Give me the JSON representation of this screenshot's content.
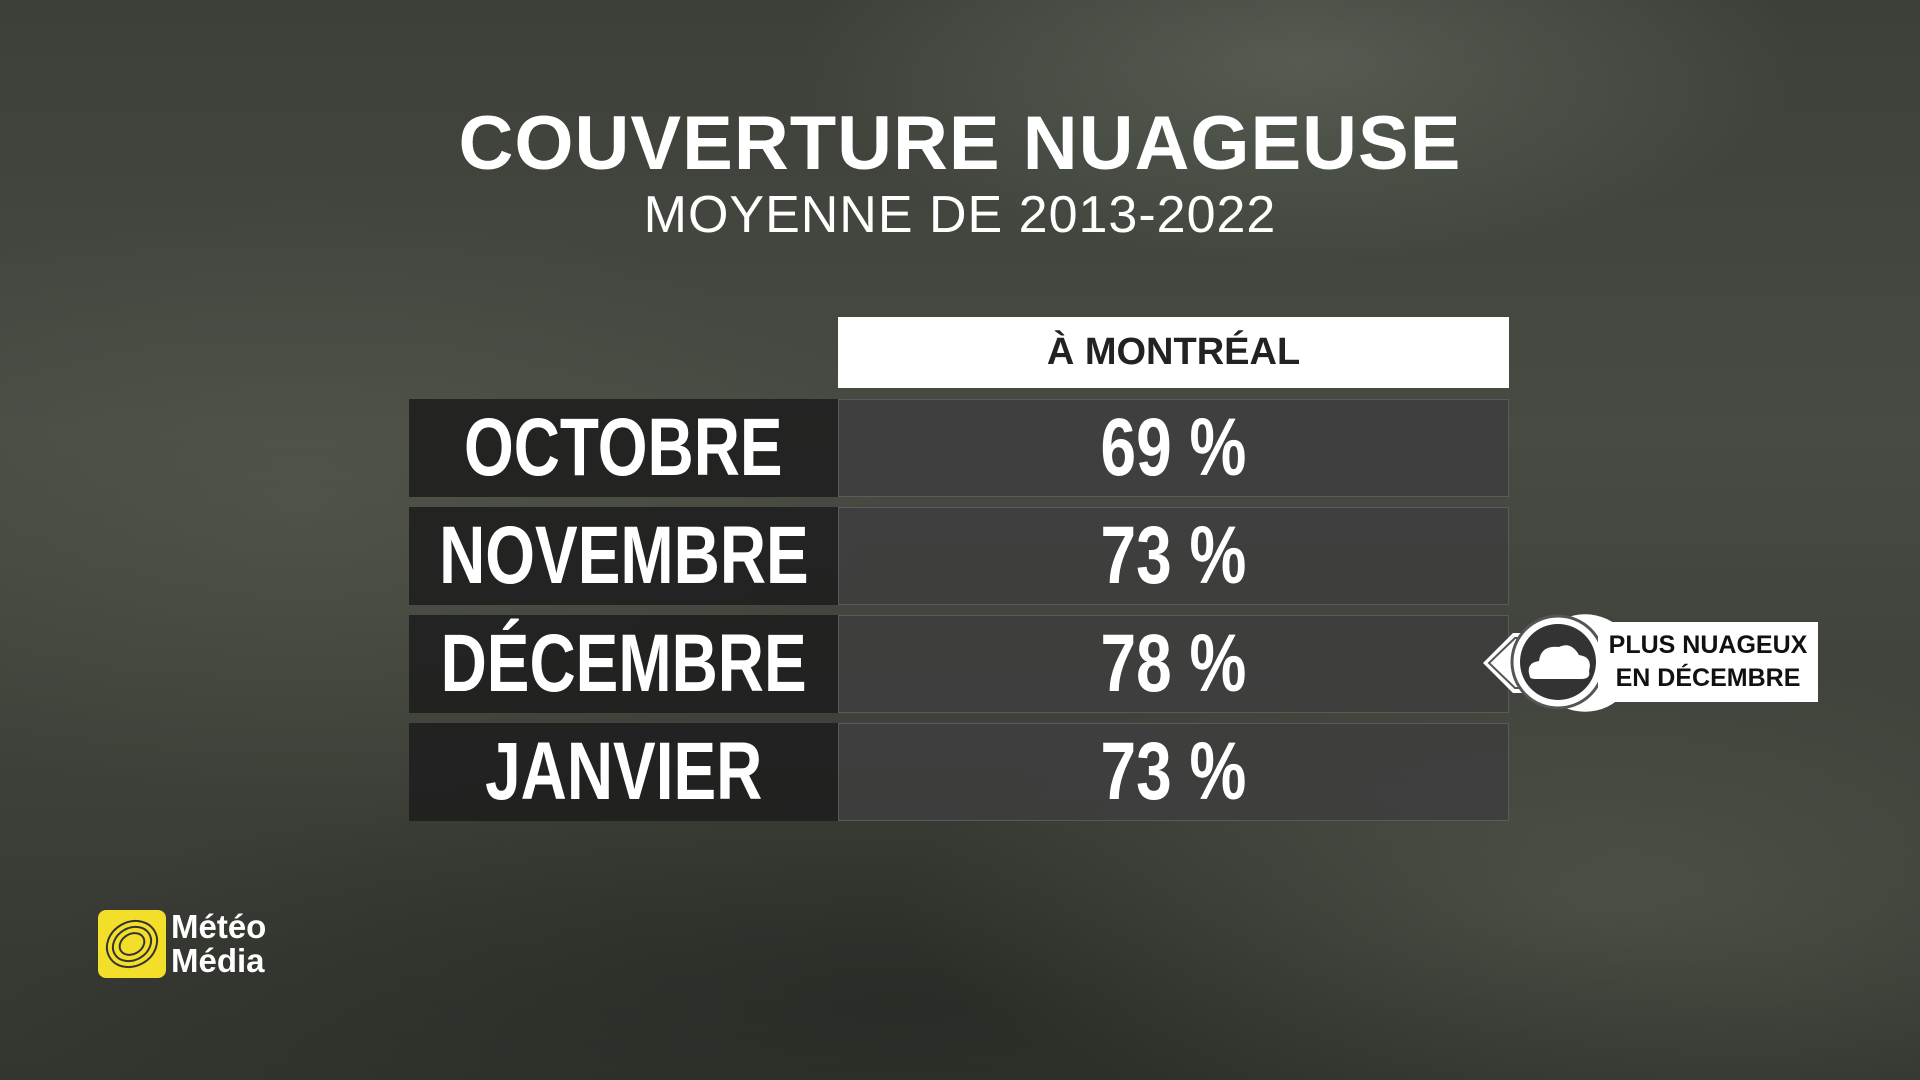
{
  "header": {
    "title": "COUVERTURE NUAGEUSE",
    "subtitle": "MOYENNE DE 2013-2022"
  },
  "table": {
    "column_header": "À MONTRÉAL",
    "rows": [
      [
        "OCTOBRE",
        "69 %"
      ],
      [
        "NOVEMBRE",
        "73 %"
      ],
      [
        "DÉCEMBRE",
        "78 %"
      ],
      [
        "JANVIER",
        "73 %"
      ]
    ]
  },
  "callout": {
    "lines": [
      "PLUS NUAGEUX",
      "EN DÉCEMBRE"
    ]
  },
  "logo": {
    "lines": [
      "Météo",
      "Média"
    ]
  }
}
